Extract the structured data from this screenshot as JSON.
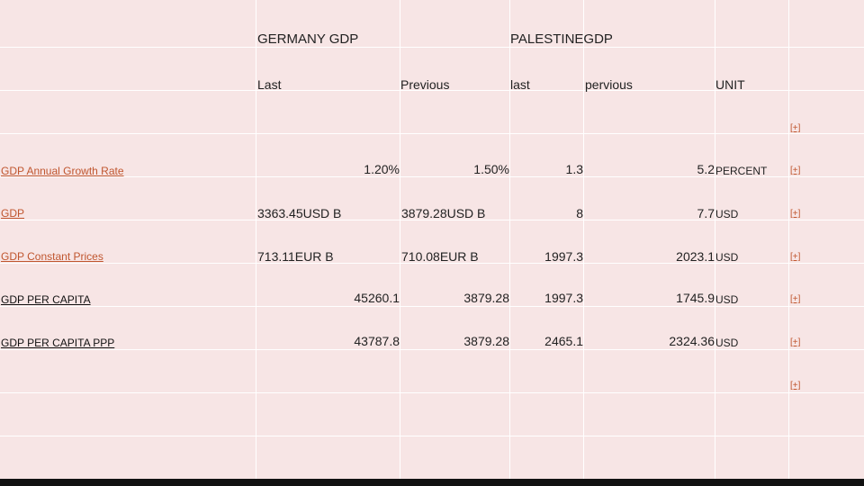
{
  "header": {
    "germany": "GERMANY GDP",
    "palestine": "PALESTINEGDP"
  },
  "subheader": {
    "last": "Last",
    "previous": "Previous",
    "last2": "last",
    "previous2": "pervious",
    "unit": "UNIT"
  },
  "plus": "[+]",
  "rows": [
    {
      "label": "GDP Annual Growth Rate",
      "g_last": "1.20%",
      "g_prev": "1.50%",
      "p_last": "1.3",
      "p_prev": "5.2",
      "unit": "PERCENT"
    },
    {
      "label": "GDP",
      "g_last": "3363.45USD  B",
      "g_prev": "3879.28USD B",
      "p_last": "8",
      "p_prev": "7.7",
      "unit": "USD"
    },
    {
      "label": "GDP Constant Prices",
      "g_last": "713.11EUR B",
      "g_prev": "710.08EUR B",
      "p_last": "1997.3",
      "p_prev": "2023.1",
      "unit": "USD"
    },
    {
      "label": "GDP PER CAPITA",
      "g_last": "45260.1",
      "g_prev": "3879.28",
      "p_last": "1997.3",
      "p_prev": "1745.9",
      "unit": "USD"
    },
    {
      "label": "GDP PER CAPITA PPP",
      "g_last": "43787.8",
      "g_prev": "3879.28",
      "p_last": "2465.1",
      "p_prev": "2324.36",
      "unit": "USD"
    }
  ]
}
